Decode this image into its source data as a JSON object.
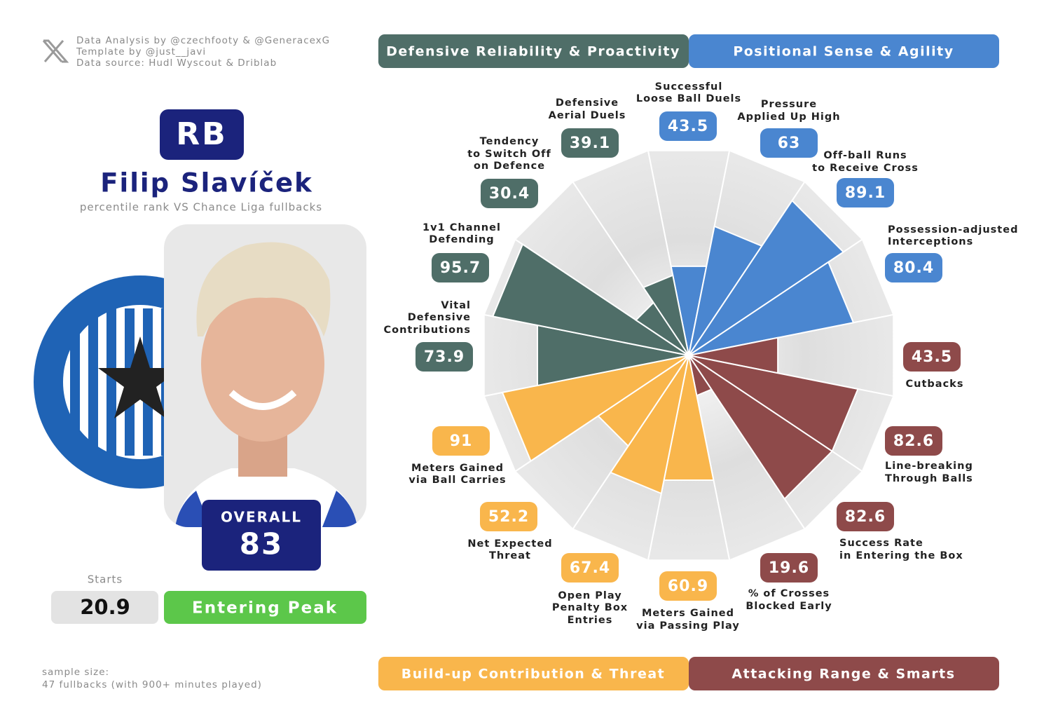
{
  "credits": [
    "Data Analysis by @czechfooty & @GeneracexG",
    "Template by @just__javi",
    "Data source: Hudl Wyscout & Driblab"
  ],
  "position": "RB",
  "player": "Filip Slavíček",
  "subtitle": "percentile rank VS Chance Liga fullbacks",
  "overall": {
    "label": "OVERALL",
    "value": 83
  },
  "starts": {
    "label": "Starts",
    "value": 20.9
  },
  "stage": "Entering Peak",
  "sample": [
    "sample size:",
    "47 fullbacks (with 900+ minutes played)"
  ],
  "chart_data": {
    "type": "pizza",
    "rlim": [
      0,
      100
    ],
    "series": [
      {
        "name": "Positional Sense & Agility",
        "color": "#4a86d0",
        "categories": [
          [
            "Successful",
            "Loose Ball Duels"
          ],
          [
            "Pressure",
            "Applied Up High"
          ],
          [
            "Off-ball Runs",
            "to Receive Cross"
          ],
          [
            "Possession-adjusted",
            "Interceptions"
          ]
        ],
        "values": [
          43.5,
          63,
          89.1,
          80.4
        ]
      },
      {
        "name": "Attacking Range & Smarts",
        "color": "#8e4a4a",
        "categories": [
          [
            "Cutbacks"
          ],
          [
            "Line-breaking",
            "Through Balls"
          ],
          [
            "Success Rate",
            "in Entering the Box"
          ],
          [
            "% of Crosses",
            "Blocked Early"
          ]
        ],
        "values": [
          43.5,
          82.6,
          82.6,
          19.6
        ]
      },
      {
        "name": "Build-up Contribution & Threat",
        "color": "#f9b64c",
        "categories": [
          [
            "Meters Gained",
            "via Passing Play"
          ],
          [
            "Open Play",
            "Penalty Box",
            "Entries"
          ],
          [
            "Net Expected",
            "Threat"
          ],
          [
            "Meters Gained",
            "via Ball Carries"
          ]
        ],
        "values": [
          60.9,
          67.4,
          52.2,
          91
        ]
      },
      {
        "name": "Defensive Reliability & Proactivity",
        "color": "#4f6e68",
        "categories": [
          [
            "Vital",
            "Defensive",
            "Contributions"
          ],
          [
            "1v1 Channel",
            "Defending"
          ],
          [
            "Tendency",
            "to Switch Off",
            "on Defence"
          ],
          [
            "Defensive",
            "Aerial Duels"
          ]
        ],
        "values": [
          73.9,
          95.7,
          30.4,
          39.1
        ]
      }
    ]
  }
}
